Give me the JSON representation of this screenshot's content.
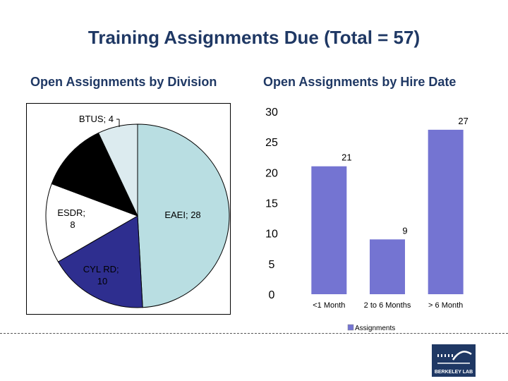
{
  "title": "Training Assignments Due (Total = 57)",
  "logo_text": "BERKELEY LAB",
  "chart_data": [
    {
      "type": "pie",
      "title": "Open Assignments by Division",
      "slices": [
        {
          "label": "EAEI",
          "value": 28,
          "color": "#b9dee2",
          "text": "EAEI; 28"
        },
        {
          "label": "CYL RD",
          "value": 10,
          "color": "#2e2e8f",
          "text_lines": [
            "CYL RD;",
            "10"
          ]
        },
        {
          "label": "ESDR",
          "value": 8,
          "color": "#ffffff",
          "text_lines": [
            "ESDR;",
            "8"
          ]
        },
        {
          "label": "",
          "value": 7,
          "color": "#000000"
        },
        {
          "label": "BTUS",
          "value": 4,
          "color": "#dcebef",
          "text": "BTUS; 4"
        }
      ]
    },
    {
      "type": "bar",
      "title": "Open Assignments by Hire Date",
      "categories": [
        "<1 Month",
        "2 to 6 Months",
        "> 6 Month"
      ],
      "series": [
        {
          "name": "Assignments",
          "values": [
            21,
            9,
            27
          ],
          "color": "#7474d2"
        }
      ],
      "yticks": [
        "0",
        "5",
        "10",
        "15",
        "20",
        "25",
        "30"
      ],
      "ylim": [
        0,
        30
      ],
      "legend": "bottom"
    }
  ]
}
